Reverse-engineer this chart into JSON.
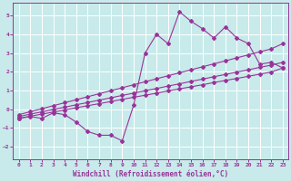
{
  "background_color": "#c8eaea",
  "grid_color": "#ffffff",
  "line_color": "#993399",
  "xlabel": "Windchill (Refroidissement éolien,°C)",
  "xlim": [
    -0.5,
    23.5
  ],
  "ylim": [
    -2.7,
    5.7
  ],
  "yticks": [
    -2,
    -1,
    0,
    1,
    2,
    3,
    4,
    5
  ],
  "xticks": [
    0,
    1,
    2,
    3,
    4,
    5,
    6,
    7,
    8,
    9,
    10,
    11,
    12,
    13,
    14,
    15,
    16,
    17,
    18,
    19,
    20,
    21,
    22,
    23
  ],
  "series1_x": [
    0,
    1,
    2,
    3,
    4,
    5,
    6,
    7,
    8,
    9,
    10,
    11,
    12,
    13,
    14,
    15,
    16,
    17,
    18,
    19,
    20,
    21,
    22,
    23
  ],
  "series1_y": [
    -0.5,
    -0.4,
    -0.5,
    -0.2,
    -0.3,
    -0.7,
    -1.2,
    -1.4,
    -1.4,
    -1.7,
    0.2,
    3.0,
    4.0,
    3.5,
    5.2,
    4.7,
    4.3,
    3.8,
    4.4,
    3.8,
    3.5,
    2.4,
    2.5,
    2.2
  ],
  "series2_x": [
    0,
    1,
    2,
    3,
    4,
    5,
    6,
    7,
    8,
    9,
    10,
    11,
    12,
    13,
    14,
    15,
    16,
    17,
    18,
    19,
    20,
    21,
    22,
    23
  ],
  "series2_y": [
    -0.5,
    -0.38,
    -0.27,
    -0.16,
    -0.05,
    0.07,
    0.18,
    0.29,
    0.4,
    0.52,
    0.63,
    0.74,
    0.85,
    0.97,
    1.08,
    1.19,
    1.3,
    1.42,
    1.53,
    1.64,
    1.75,
    1.87,
    1.98,
    2.2
  ],
  "series3_x": [
    0,
    1,
    2,
    3,
    4,
    5,
    6,
    7,
    8,
    9,
    10,
    11,
    12,
    13,
    14,
    15,
    16,
    17,
    18,
    19,
    20,
    21,
    22,
    23
  ],
  "series3_y": [
    -0.4,
    -0.27,
    -0.15,
    -0.02,
    0.1,
    0.23,
    0.35,
    0.48,
    0.6,
    0.73,
    0.85,
    0.98,
    1.1,
    1.23,
    1.35,
    1.48,
    1.6,
    1.73,
    1.85,
    1.98,
    2.1,
    2.23,
    2.35,
    2.5
  ],
  "series4_x": [
    0,
    1,
    2,
    3,
    4,
    5,
    6,
    7,
    8,
    9,
    10,
    11,
    12,
    13,
    14,
    15,
    16,
    17,
    18,
    19,
    20,
    21,
    22,
    23
  ],
  "series4_y": [
    -0.3,
    -0.14,
    0.02,
    0.18,
    0.34,
    0.5,
    0.66,
    0.82,
    0.98,
    1.14,
    1.3,
    1.46,
    1.62,
    1.78,
    1.94,
    2.1,
    2.26,
    2.42,
    2.58,
    2.74,
    2.9,
    3.06,
    3.22,
    3.5
  ],
  "marker": "D",
  "markersize": 2,
  "linewidth": 0.8,
  "tick_fontsize": 4.5,
  "xlabel_fontsize": 5.5
}
